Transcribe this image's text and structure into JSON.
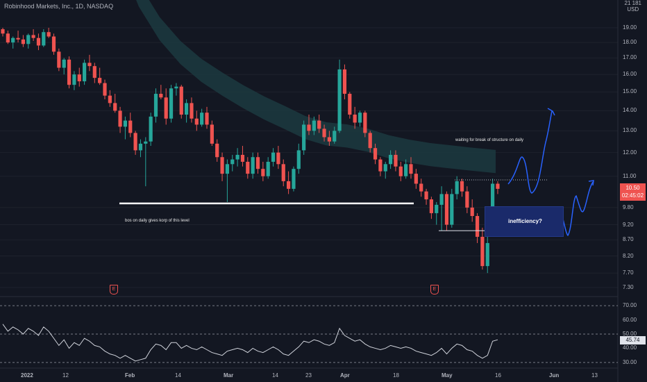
{
  "header": {
    "title": "Robinhood Markets, Inc., 1D, NASDAQ",
    "timezone": "21 181",
    "currency": "USD"
  },
  "price_axis": [
    "19.00",
    "18.00",
    "17.00",
    "16.00",
    "15.00",
    "14.00",
    "13.00",
    "12.00",
    "11.00",
    "9.80",
    "9.20",
    "8.70",
    "8.20",
    "7.70",
    "7.30"
  ],
  "rsi_axis": [
    "70.00",
    "60.00",
    "50.00",
    "40.00",
    "30.00"
  ],
  "time_axis": [
    "2022",
    "12",
    "Feb",
    "14",
    "Mar",
    "14",
    "23",
    "Apr",
    "18",
    "May",
    "16",
    "Jun",
    "13"
  ],
  "last_price": {
    "value": "10.50",
    "countdown": "02:45:02"
  },
  "rsi_value": "45.74",
  "annotations": {
    "bos_note": "bos on daily gives korp of this level",
    "waiting_note": "waiting for break of structure on daily",
    "inefficiency": "inefficiency?"
  },
  "earnings_icon": "E",
  "colors": {
    "background": "#131722",
    "up": "#26a69a",
    "down": "#ef5350",
    "neutral": "#787b86",
    "cloud": "#1c3a40",
    "drawing": "#2962ff",
    "box": "#1a2a6a"
  },
  "chart_data": {
    "type": "candlestick",
    "ohlc": [
      [
        18.9,
        19.0,
        18.4,
        18.6
      ],
      [
        18.6,
        18.8,
        17.9,
        18.0
      ],
      [
        18.0,
        18.4,
        17.6,
        18.3
      ],
      [
        18.3,
        18.8,
        18.0,
        18.2
      ],
      [
        18.2,
        18.5,
        17.7,
        17.9
      ],
      [
        17.9,
        18.6,
        17.6,
        18.5
      ],
      [
        18.5,
        18.9,
        18.1,
        18.3
      ],
      [
        18.3,
        18.6,
        17.5,
        17.8
      ],
      [
        17.8,
        18.9,
        17.7,
        18.7
      ],
      [
        18.7,
        19.0,
        18.3,
        18.4
      ],
      [
        18.4,
        18.6,
        17.2,
        17.4
      ],
      [
        17.4,
        17.6,
        16.2,
        16.4
      ],
      [
        16.4,
        17.0,
        16.0,
        16.9
      ],
      [
        16.9,
        17.1,
        15.2,
        15.4
      ],
      [
        15.4,
        16.2,
        15.1,
        16.0
      ],
      [
        16.0,
        16.4,
        15.3,
        15.6
      ],
      [
        15.6,
        16.9,
        15.4,
        16.7
      ],
      [
        16.7,
        17.2,
        16.2,
        16.5
      ],
      [
        16.5,
        16.7,
        15.5,
        15.8
      ],
      [
        15.8,
        16.4,
        15.4,
        15.5
      ],
      [
        15.5,
        15.7,
        14.6,
        14.8
      ],
      [
        14.8,
        15.1,
        14.2,
        14.4
      ],
      [
        14.4,
        14.9,
        13.9,
        14.0
      ],
      [
        14.0,
        14.2,
        12.9,
        13.2
      ],
      [
        13.2,
        13.7,
        12.6,
        13.5
      ],
      [
        13.5,
        13.9,
        12.7,
        12.9
      ],
      [
        12.9,
        13.0,
        11.9,
        12.1
      ],
      [
        12.1,
        12.6,
        11.8,
        12.4
      ],
      [
        12.4,
        12.7,
        10.6,
        12.5
      ],
      [
        12.5,
        13.9,
        12.3,
        13.7
      ],
      [
        13.7,
        15.2,
        13.4,
        14.9
      ],
      [
        14.9,
        15.4,
        14.6,
        14.7
      ],
      [
        14.7,
        15.2,
        13.3,
        13.6
      ],
      [
        13.6,
        15.4,
        13.4,
        15.2
      ],
      [
        15.2,
        15.5,
        14.8,
        15.3
      ],
      [
        15.3,
        15.4,
        13.6,
        13.8
      ],
      [
        13.8,
        14.6,
        13.4,
        14.4
      ],
      [
        14.4,
        14.7,
        13.4,
        13.6
      ],
      [
        13.6,
        14.0,
        13.0,
        13.3
      ],
      [
        13.3,
        14.1,
        13.2,
        13.9
      ],
      [
        13.9,
        14.2,
        13.1,
        13.3
      ],
      [
        13.3,
        13.5,
        12.3,
        12.4
      ],
      [
        12.4,
        12.6,
        11.6,
        11.8
      ],
      [
        11.8,
        12.0,
        10.8,
        11.1
      ],
      [
        11.1,
        11.7,
        10.0,
        11.5
      ],
      [
        11.5,
        11.9,
        11.2,
        11.7
      ],
      [
        11.7,
        12.2,
        11.4,
        11.9
      ],
      [
        11.9,
        12.3,
        11.4,
        11.6
      ],
      [
        11.6,
        11.8,
        10.9,
        11.1
      ],
      [
        11.1,
        12.0,
        10.9,
        11.8
      ],
      [
        11.8,
        12.0,
        11.1,
        11.3
      ],
      [
        11.3,
        11.6,
        10.8,
        11.0
      ],
      [
        11.0,
        11.8,
        10.9,
        11.6
      ],
      [
        11.6,
        12.2,
        11.4,
        12.0
      ],
      [
        12.0,
        12.3,
        11.3,
        11.5
      ],
      [
        11.5,
        11.7,
        10.6,
        10.8
      ],
      [
        10.8,
        11.2,
        10.3,
        10.5
      ],
      [
        10.5,
        11.4,
        10.4,
        11.3
      ],
      [
        11.3,
        12.4,
        11.1,
        12.1
      ],
      [
        12.1,
        13.5,
        11.9,
        13.3
      ],
      [
        13.3,
        13.8,
        12.8,
        13.0
      ],
      [
        13.0,
        13.7,
        12.8,
        13.5
      ],
      [
        13.5,
        13.8,
        12.9,
        13.1
      ],
      [
        13.1,
        13.3,
        12.5,
        12.7
      ],
      [
        12.7,
        13.0,
        12.3,
        12.5
      ],
      [
        12.5,
        13.2,
        12.4,
        13.0
      ],
      [
        13.0,
        16.9,
        12.9,
        16.3
      ],
      [
        16.3,
        16.6,
        14.6,
        14.9
      ],
      [
        14.9,
        15.0,
        13.6,
        13.8
      ],
      [
        13.8,
        14.2,
        13.1,
        13.4
      ],
      [
        13.4,
        14.0,
        13.2,
        13.9
      ],
      [
        13.9,
        14.0,
        12.7,
        12.9
      ],
      [
        12.9,
        13.0,
        12.0,
        12.2
      ],
      [
        12.2,
        12.4,
        11.5,
        11.7
      ],
      [
        11.7,
        11.8,
        11.0,
        11.2
      ],
      [
        11.2,
        11.6,
        10.9,
        11.5
      ],
      [
        11.5,
        12.1,
        11.3,
        11.9
      ],
      [
        11.9,
        12.1,
        11.2,
        11.4
      ],
      [
        11.4,
        11.6,
        10.8,
        11.0
      ],
      [
        11.0,
        11.7,
        10.9,
        11.5
      ],
      [
        11.5,
        11.8,
        10.9,
        11.1
      ],
      [
        11.1,
        11.3,
        10.5,
        10.7
      ],
      [
        10.7,
        10.9,
        10.2,
        10.4
      ],
      [
        10.4,
        10.5,
        9.9,
        10.1
      ],
      [
        10.1,
        10.2,
        9.4,
        9.6
      ],
      [
        9.6,
        10.0,
        9.2,
        9.9
      ],
      [
        9.9,
        10.6,
        9.0,
        10.3
      ],
      [
        10.3,
        10.4,
        9.0,
        9.2
      ],
      [
        9.2,
        10.5,
        9.1,
        10.3
      ],
      [
        10.3,
        11.0,
        10.1,
        10.8
      ],
      [
        10.8,
        10.9,
        10.2,
        10.4
      ],
      [
        10.4,
        10.6,
        9.6,
        9.8
      ],
      [
        9.8,
        10.1,
        9.3,
        9.5
      ],
      [
        9.5,
        9.6,
        8.6,
        8.8
      ],
      [
        8.8,
        9.1,
        7.8,
        7.9
      ],
      [
        7.9,
        8.8,
        7.7,
        8.6
      ],
      [
        9.8,
        10.9,
        9.7,
        10.7
      ],
      [
        10.7,
        10.8,
        10.3,
        10.5
      ]
    ],
    "rsi": [
      57,
      52,
      55,
      53,
      50,
      54,
      52,
      49,
      55,
      52,
      47,
      42,
      46,
      40,
      44,
      42,
      47,
      45,
      42,
      41,
      38,
      36,
      35,
      33,
      35,
      33,
      31,
      32,
      33,
      39,
      43,
      42,
      39,
      44,
      44,
      40,
      42,
      40,
      39,
      41,
      39,
      37,
      36,
      35,
      38,
      39,
      40,
      39,
      37,
      40,
      38,
      37,
      39,
      41,
      39,
      36,
      35,
      38,
      41,
      45,
      44,
      46,
      45,
      43,
      42,
      44,
      54,
      49,
      47,
      45,
      46,
      43,
      41,
      40,
      39,
      40,
      42,
      41,
      40,
      41,
      40,
      38,
      37,
      36,
      35,
      37,
      40,
      36,
      40,
      43,
      42,
      39,
      38,
      35,
      33,
      35,
      45,
      46
    ],
    "horizontal_levels": [
      9.95,
      10.85,
      9.0
    ]
  }
}
